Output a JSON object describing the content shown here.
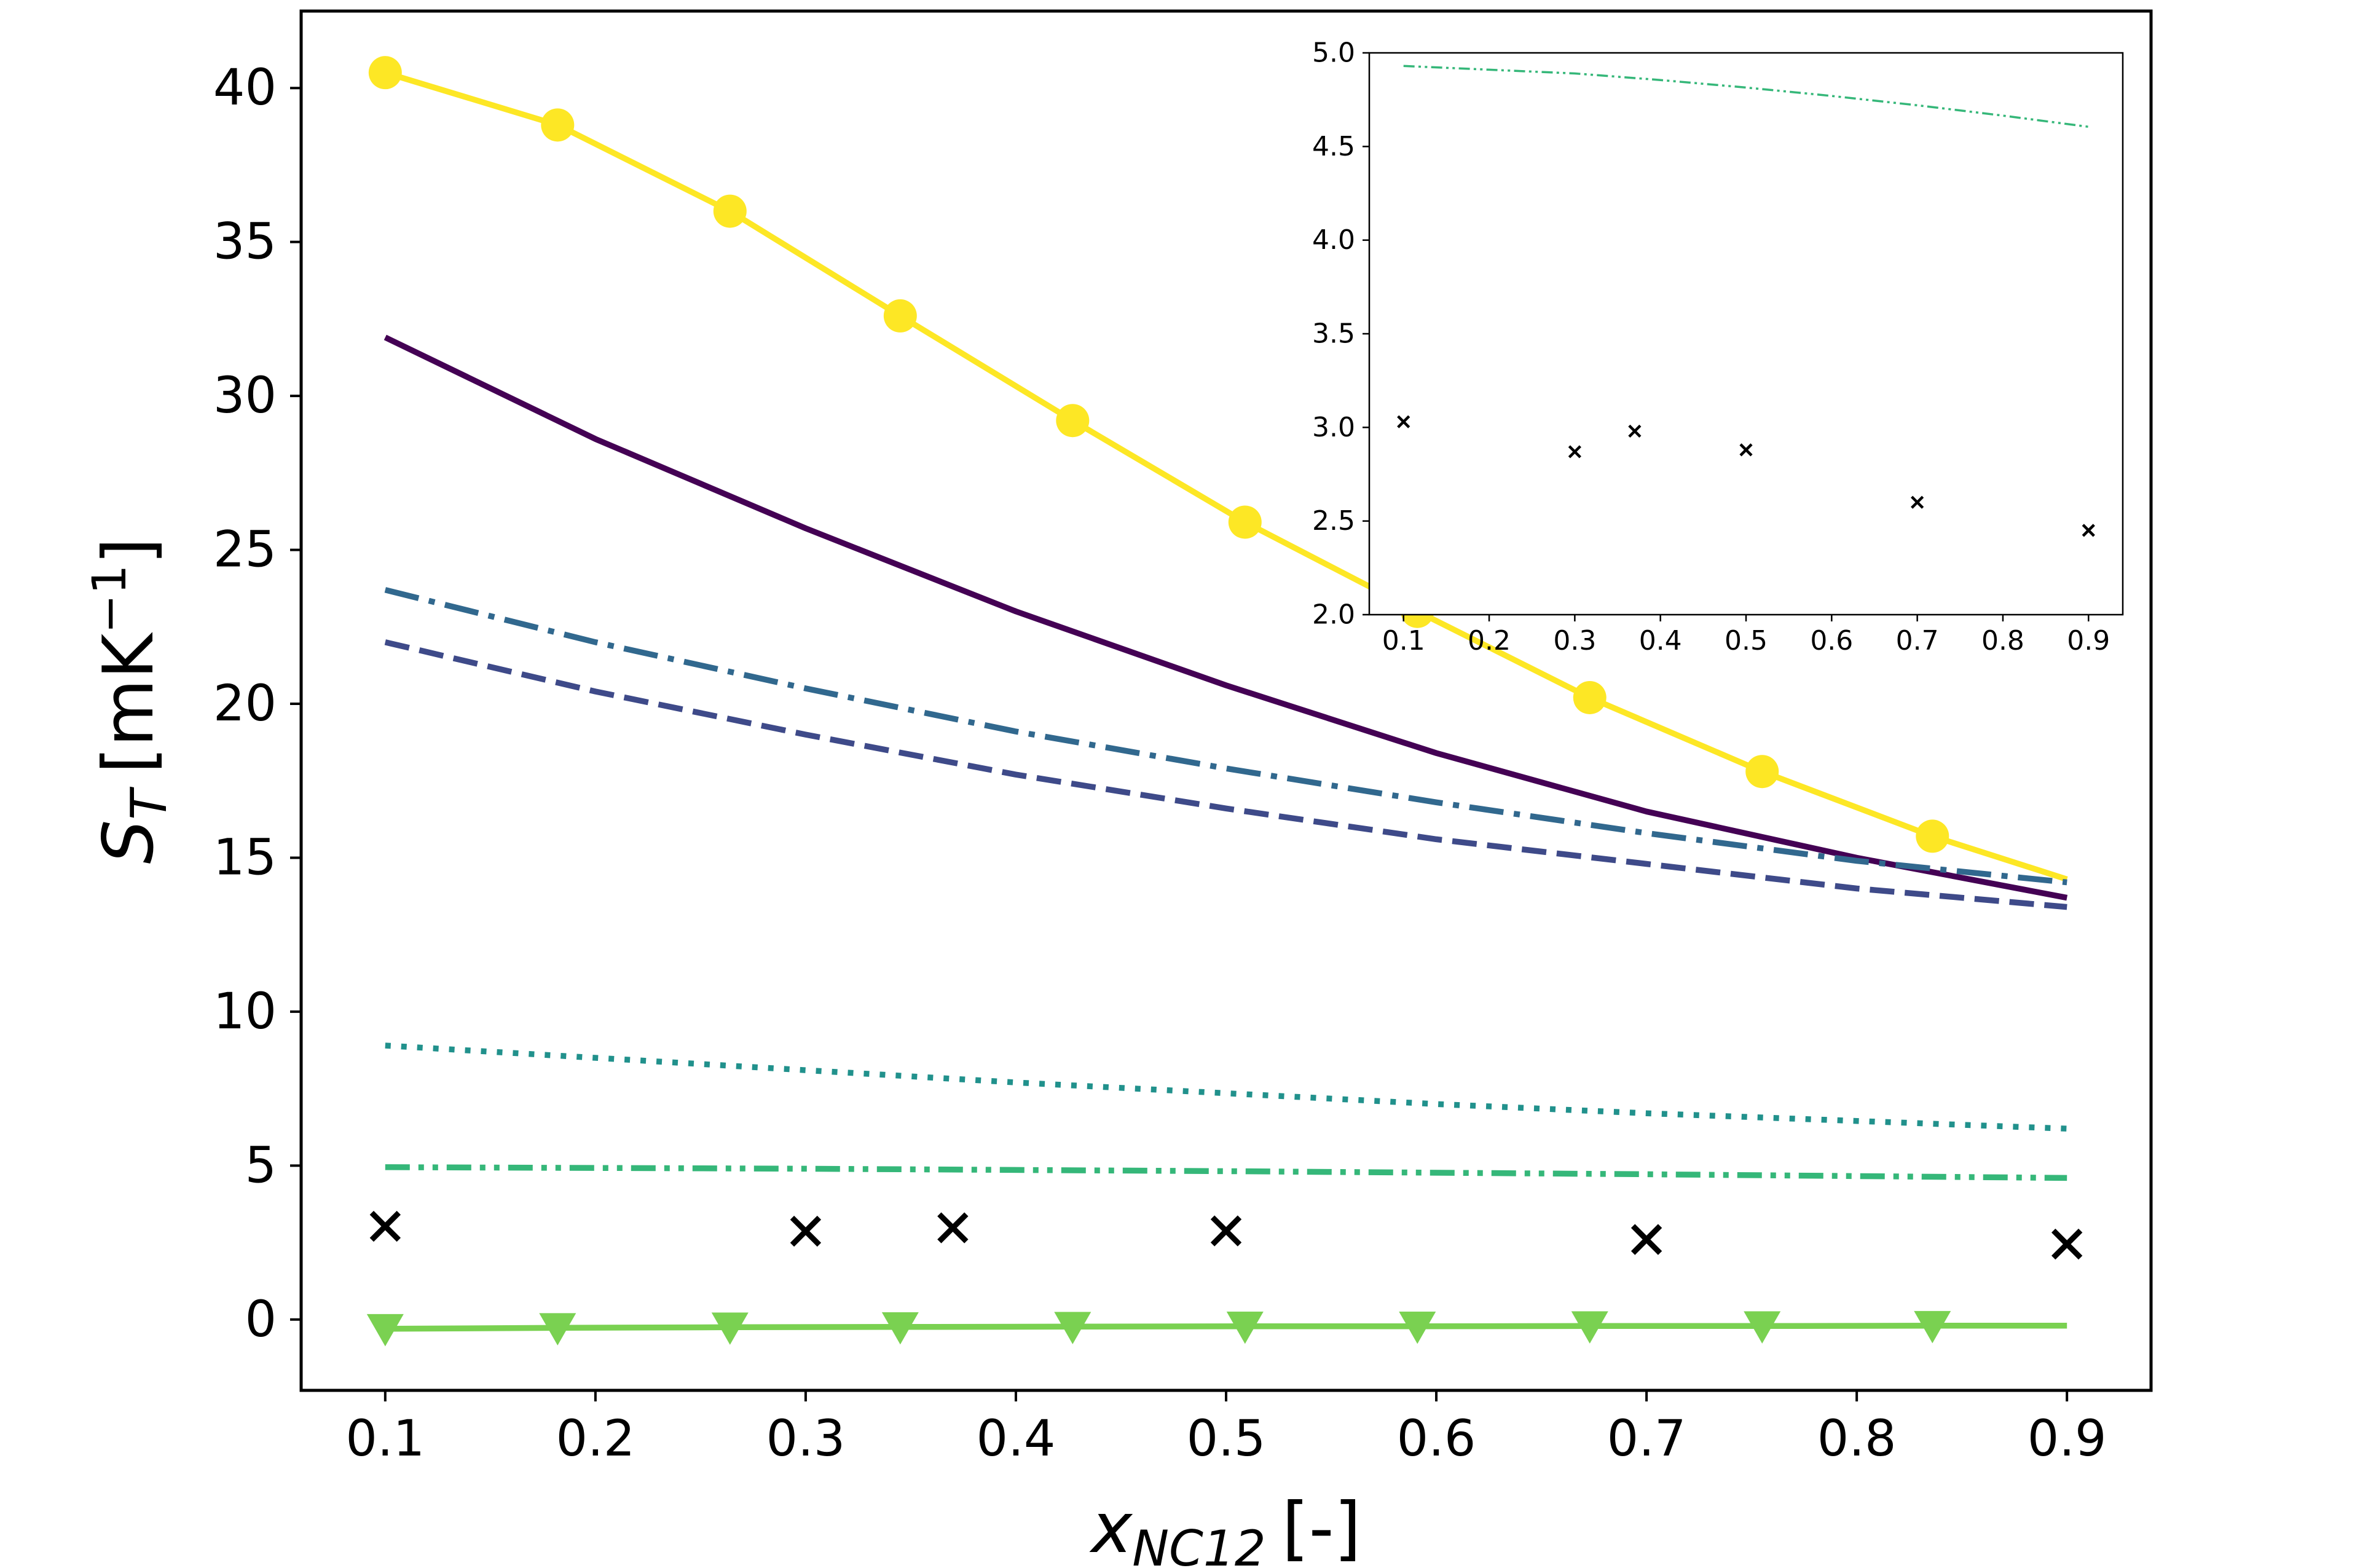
{
  "chart_data": [
    {
      "type": "line",
      "xlabel": "x",
      "xlabel_sub": "NC12",
      "xlabel_unit": "[-]",
      "ylabel": "S",
      "ylabel_sub": "T",
      "ylabel_unit": "[mK",
      "ylabel_unit_sup": "−1",
      "ylabel_unit_end": "]",
      "xlim": [
        0.06,
        0.94
      ],
      "ylim": [
        -2.3,
        42.5
      ],
      "xticks": [
        "0.1",
        "0.2",
        "0.3",
        "0.4",
        "0.5",
        "0.6",
        "0.7",
        "0.8",
        "0.9"
      ],
      "yticks": [
        "0",
        "5",
        "10",
        "15",
        "20",
        "25",
        "30",
        "35",
        "40"
      ],
      "grid": false,
      "series": [
        {
          "color": "#fde725",
          "style": "solid",
          "marker": "circle",
          "x": [
            0.1,
            0.182,
            0.264,
            0.345,
            0.427,
            0.509,
            0.591,
            0.673,
            0.755,
            0.836,
            0.9
          ],
          "y": [
            40.5,
            38.8,
            36.0,
            32.6,
            29.2,
            25.9,
            23.0,
            20.2,
            17.8,
            15.7,
            14.3
          ],
          "marker_x": [
            0.1,
            0.182,
            0.264,
            0.345,
            0.427,
            0.509,
            0.591,
            0.673,
            0.755,
            0.836
          ],
          "marker_y": [
            40.5,
            38.8,
            36.0,
            32.6,
            29.2,
            25.9,
            23.0,
            20.2,
            17.8,
            15.7
          ]
        },
        {
          "color": "#440154",
          "style": "solid",
          "x": [
            0.1,
            0.2,
            0.3,
            0.4,
            0.5,
            0.6,
            0.7,
            0.8,
            0.9
          ],
          "y": [
            31.9,
            28.6,
            25.7,
            23.0,
            20.6,
            18.4,
            16.5,
            15.0,
            13.7
          ]
        },
        {
          "color": "#31688e",
          "style": "dashdot",
          "x": [
            0.1,
            0.2,
            0.3,
            0.4,
            0.5,
            0.6,
            0.7,
            0.8,
            0.9
          ],
          "y": [
            23.7,
            22.0,
            20.5,
            19.1,
            17.9,
            16.8,
            15.8,
            14.9,
            14.2
          ]
        },
        {
          "color": "#3e4a89",
          "style": "dashed",
          "x": [
            0.1,
            0.2,
            0.3,
            0.4,
            0.5,
            0.6,
            0.7,
            0.8,
            0.9
          ],
          "y": [
            22.0,
            20.4,
            19.0,
            17.7,
            16.6,
            15.6,
            14.8,
            14.0,
            13.4
          ]
        },
        {
          "color": "#21918c",
          "style": "dotted",
          "x": [
            0.1,
            0.2,
            0.3,
            0.4,
            0.5,
            0.6,
            0.7,
            0.8,
            0.9
          ],
          "y": [
            8.9,
            8.5,
            8.1,
            7.7,
            7.35,
            7.0,
            6.7,
            6.45,
            6.2
          ]
        },
        {
          "color": "#35b779",
          "style": "dashdotdot",
          "x": [
            0.1,
            0.3,
            0.5,
            0.7,
            0.9
          ],
          "y": [
            4.95,
            4.9,
            4.82,
            4.72,
            4.6
          ]
        },
        {
          "color": "#7ad151",
          "style": "solid",
          "marker": "triangle_down",
          "x": [
            0.1,
            0.182,
            0.264,
            0.345,
            0.427,
            0.509,
            0.591,
            0.673,
            0.755,
            0.836,
            0.9
          ],
          "y": [
            -0.3,
            -0.27,
            -0.25,
            -0.24,
            -0.23,
            -0.22,
            -0.22,
            -0.21,
            -0.21,
            -0.2,
            -0.2
          ],
          "marker_x": [
            0.1,
            0.182,
            0.264,
            0.345,
            0.427,
            0.509,
            0.591,
            0.673,
            0.755,
            0.836
          ],
          "marker_y": [
            -0.3,
            -0.27,
            -0.25,
            -0.24,
            -0.23,
            -0.22,
            -0.22,
            -0.21,
            -0.21,
            -0.2
          ]
        },
        {
          "color": "#000000",
          "style": "none",
          "marker": "x",
          "x": [
            0.1,
            0.3,
            0.37,
            0.5,
            0.7,
            0.9
          ],
          "y": [
            3.03,
            2.87,
            2.98,
            2.88,
            2.6,
            2.45
          ]
        }
      ]
    },
    {
      "type": "line",
      "inset": true,
      "xlim": [
        0.06,
        0.94
      ],
      "ylim": [
        2.0,
        5.0
      ],
      "xticks": [
        "0.1",
        "0.2",
        "0.3",
        "0.4",
        "0.5",
        "0.6",
        "0.7",
        "0.8",
        "0.9"
      ],
      "yticks": [
        "2.0",
        "2.5",
        "3.0",
        "3.5",
        "4.0",
        "4.5",
        "5.0"
      ],
      "series": [
        {
          "color": "#35b779",
          "style": "dashdotdot",
          "x": [
            0.1,
            0.2,
            0.3,
            0.4,
            0.5,
            0.6,
            0.7,
            0.8,
            0.9
          ],
          "y": [
            4.93,
            4.91,
            4.89,
            4.855,
            4.815,
            4.77,
            4.72,
            4.665,
            4.605
          ]
        },
        {
          "color": "#000000",
          "style": "none",
          "marker": "x",
          "x": [
            0.1,
            0.3,
            0.37,
            0.5,
            0.7,
            0.9
          ],
          "y": [
            3.03,
            2.87,
            2.98,
            2.88,
            2.6,
            2.45
          ]
        }
      ]
    }
  ]
}
